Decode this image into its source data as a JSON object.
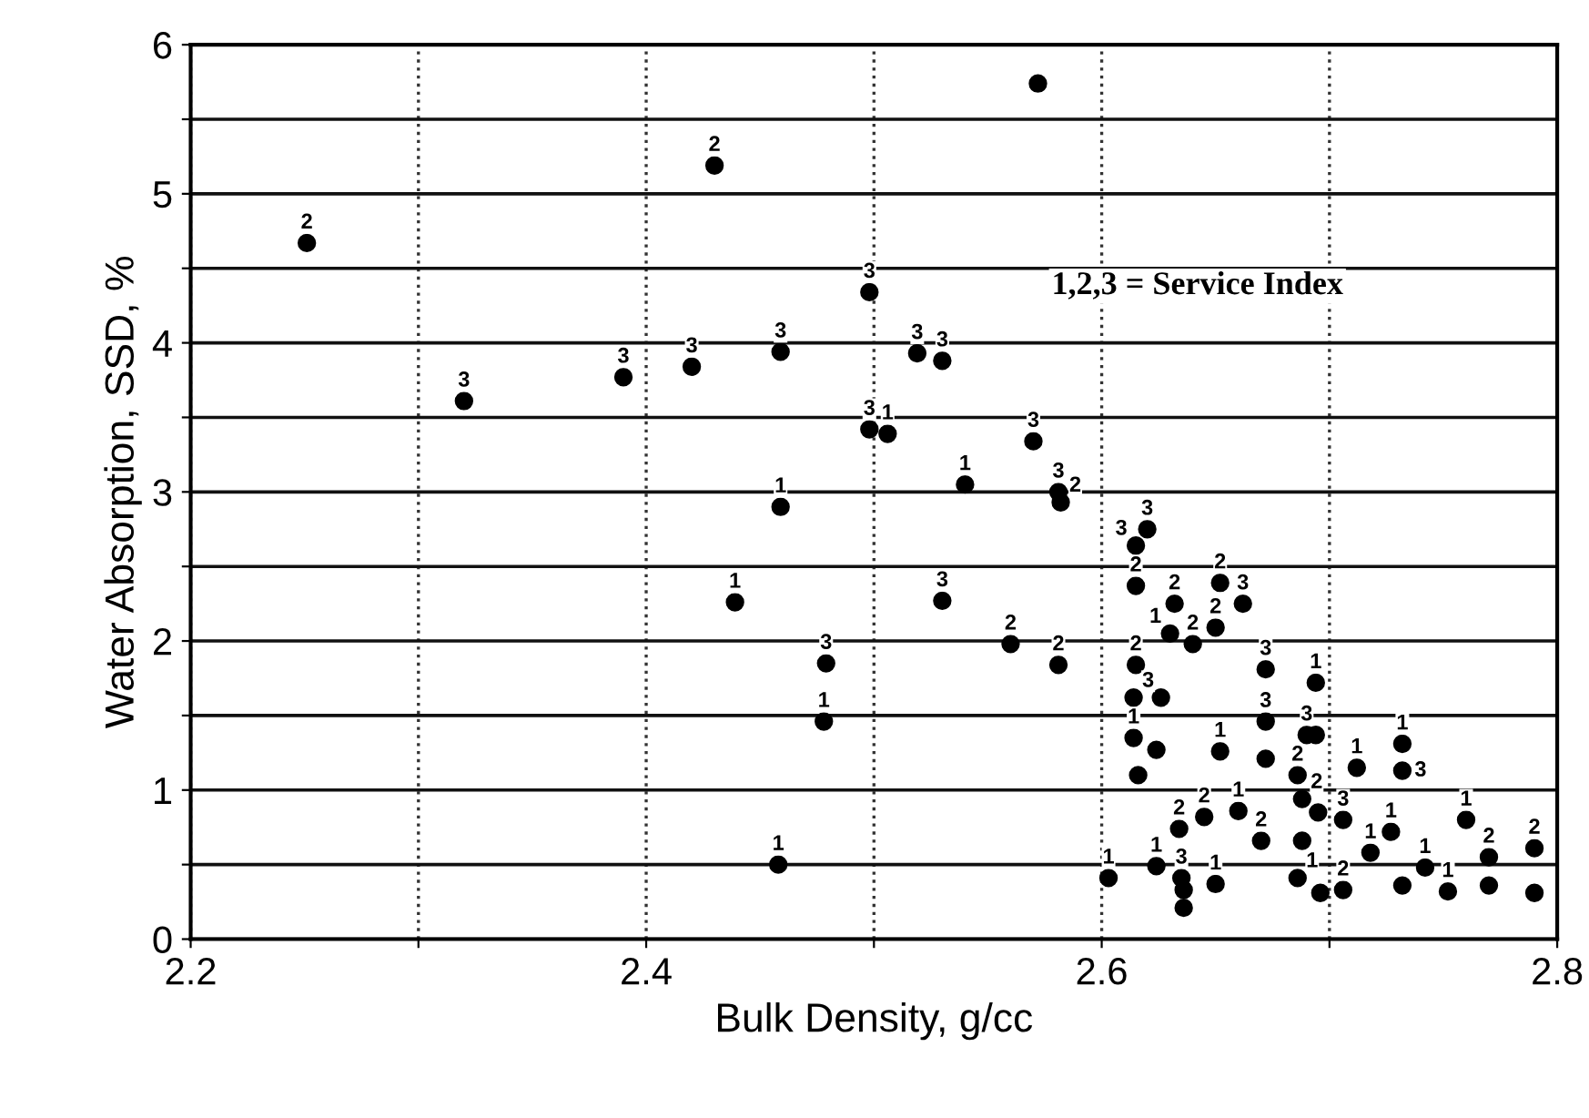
{
  "chart_data": {
    "type": "scatter",
    "xlabel": "Bulk Density, g/cc",
    "ylabel": "Water Absorption, SSD, %",
    "annotations": [
      "1,2,3 = Service Index"
    ],
    "xlim": [
      2.2,
      2.8
    ],
    "ylim": [
      0,
      6
    ],
    "xticks": [
      2.2,
      {
        "value": 2.3,
        "label": null
      },
      2.4,
      {
        "value": 2.5,
        "label": null
      },
      2.6,
      {
        "value": 2.7,
        "label": null
      },
      2.8
    ],
    "yticks": [
      0,
      {
        "value": 0.5,
        "label": null
      },
      1,
      {
        "value": 1.5,
        "label": null
      },
      2,
      {
        "value": 2.5,
        "label": null
      },
      3,
      {
        "value": 3.5,
        "label": null
      },
      4,
      {
        "value": 4.5,
        "label": null
      },
      5,
      {
        "value": 5.5,
        "label": null
      },
      6
    ],
    "grid": true,
    "marker": "circle",
    "legend": false,
    "series": [
      {
        "name": "1",
        "color": "#000000",
        "x": [
          2.506,
          2.459,
          2.439,
          2.478,
          2.458,
          2.54,
          2.63,
          2.614,
          2.652,
          2.694,
          2.712,
          2.732,
          2.76,
          2.752,
          2.742,
          2.727,
          2.718,
          2.686,
          2.603,
          2.624,
          2.65,
          2.66
        ],
        "values": [
          3.39,
          2.9,
          2.26,
          1.46,
          0.5,
          3.05,
          2.05,
          1.35,
          1.26,
          1.72,
          1.15,
          1.31,
          0.8,
          0.32,
          0.48,
          0.72,
          0.58,
          0.41,
          0.41,
          0.49,
          0.37,
          0.86
        ]
      },
      {
        "name": "2",
        "color": "#000000",
        "x": [
          2.251,
          2.43,
          2.582,
          2.56,
          2.581,
          2.615,
          2.632,
          2.64,
          2.652,
          2.65,
          2.615,
          2.77,
          2.79,
          2.688,
          2.706,
          2.634,
          2.645,
          2.67,
          2.686
        ],
        "values": [
          4.67,
          5.19,
          2.93,
          1.98,
          1.84,
          2.37,
          2.25,
          1.98,
          2.39,
          2.09,
          1.84,
          0.55,
          0.61,
          0.94,
          0.33,
          0.74,
          0.82,
          0.66,
          1.1
        ]
      },
      {
        "name": "3",
        "color": "#000000",
        "x": [
          2.32,
          2.39,
          2.42,
          2.459,
          2.498,
          2.498,
          2.479,
          2.519,
          2.53,
          2.57,
          2.581,
          2.62,
          2.615,
          2.53,
          2.662,
          2.672,
          2.672,
          2.614,
          2.69,
          2.732,
          2.706,
          2.635
        ],
        "values": [
          3.61,
          3.77,
          3.84,
          3.94,
          4.34,
          3.42,
          1.85,
          3.93,
          3.88,
          3.34,
          3.0,
          2.75,
          2.64,
          2.27,
          2.25,
          1.81,
          1.46,
          1.62,
          1.37,
          1.13,
          0.8,
          0.41
        ]
      },
      {
        "color": "#000000",
        "x": [
          2.572,
          2.626,
          2.624,
          2.616,
          2.672,
          2.694,
          2.79,
          2.77,
          2.732,
          2.695,
          2.696,
          2.688,
          2.636,
          2.636
        ],
        "values": [
          5.74,
          1.62,
          1.27,
          1.1,
          1.21,
          1.37,
          0.31,
          0.36,
          0.36,
          0.85,
          0.31,
          0.66,
          0.33,
          0.21
        ]
      }
    ]
  }
}
